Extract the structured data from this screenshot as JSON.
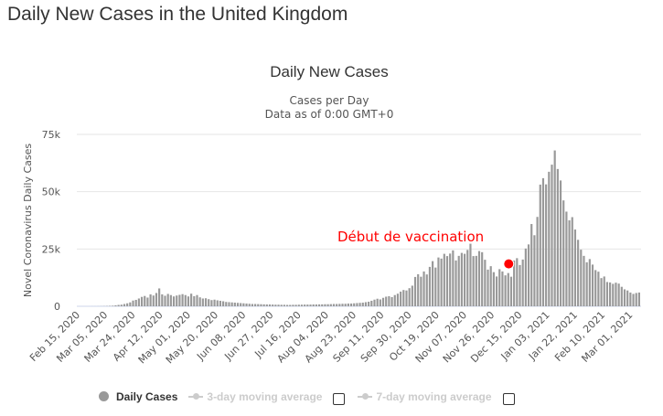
{
  "page_title": "Daily New Cases in the United Kingdom",
  "chart_data": {
    "type": "bar",
    "title": "Daily New Cases",
    "subtitle_1": "Cases per Day",
    "subtitle_2": "Data as of 0:00 GMT+0",
    "ylabel": "Novel Coronavirus Daily Cases",
    "xlabel": "",
    "ylim": [
      0,
      75000
    ],
    "y_ticks": [
      {
        "value": 0,
        "label": "0"
      },
      {
        "value": 25000,
        "label": "25k"
      },
      {
        "value": 50000,
        "label": "50k"
      },
      {
        "value": 75000,
        "label": "75k"
      }
    ],
    "x_start": "2020-02-15",
    "x_step_days": 2,
    "x_total_days": 388,
    "x_tick_labels": [
      "Feb 15, 2020",
      "Mar 05, 2020",
      "Mar 24, 2020",
      "Apr 12, 2020",
      "May 01, 2020",
      "May 20, 2020",
      "Jun 08, 2020",
      "Jun 27, 2020",
      "Jul 16, 2020",
      "Aug 04, 2020",
      "Aug 23, 2020",
      "Sep 11, 2020",
      "Sep 30, 2020",
      "Oct 19, 2020",
      "Nov 07, 2020",
      "Nov 26, 2020",
      "Dec 15, 2020",
      "Jan 03, 2021",
      "Jan 22, 2021",
      "Feb 10, 2021",
      "Mar 01, 2021"
    ],
    "x_tick_step_days": 19,
    "grid": true,
    "bar_color": "#999999",
    "series": [
      {
        "name": "Daily Cases",
        "values": [
          0,
          0,
          0,
          0,
          0,
          10,
          15,
          30,
          50,
          80,
          120,
          180,
          250,
          400,
          600,
          700,
          1000,
          1300,
          1700,
          2500,
          2800,
          3400,
          4100,
          4500,
          3800,
          5200,
          4700,
          5800,
          7800,
          5200,
          4600,
          5400,
          4900,
          4300,
          4700,
          5000,
          5300,
          4900,
          4300,
          5500,
          4400,
          4900,
          3900,
          3400,
          3500,
          3100,
          2700,
          2900,
          2600,
          2400,
          2200,
          1900,
          1800,
          1700,
          1600,
          1500,
          1400,
          1300,
          1200,
          1100,
          1000,
          1000,
          950,
          900,
          850,
          800,
          800,
          750,
          700,
          700,
          650,
          650,
          600,
          600,
          650,
          650,
          700,
          700,
          750,
          750,
          750,
          800,
          800,
          850,
          850,
          900,
          900,
          950,
          1000,
          1000,
          1050,
          1100,
          1100,
          1200,
          1200,
          1300,
          1400,
          1500,
          1600,
          1800,
          2000,
          2400,
          2900,
          3300,
          3000,
          3700,
          4200,
          4400,
          4000,
          4900,
          5500,
          6400,
          7100,
          6900,
          7900,
          9000,
          12800,
          14000,
          12900,
          15200,
          13900,
          17200,
          19700,
          16900,
          21300,
          20800,
          22900,
          21900,
          23000,
          24400,
          20000,
          22000,
          23300,
          22900,
          24600,
          27300,
          21900,
          22000,
          24100,
          23600,
          20300,
          16000,
          17500,
          14900,
          13000,
          16200,
          15200,
          13500,
          14500,
          12900,
          20000,
          21000,
          18000,
          20400,
          25200,
          27000,
          35900,
          31000,
          39000,
          53100,
          55900,
          53200,
          58700,
          61800,
          68000,
          59900,
          54900,
          46200,
          41300,
          37500,
          38900,
          33500,
          29000,
          24700,
          22000,
          19200,
          20600,
          18200,
          15800,
          15100,
          12300,
          13000,
          10600,
          10400,
          9800,
          10300,
          9900,
          8500,
          7400,
          6900,
          6000,
          5400,
          5800,
          6000
        ]
      }
    ],
    "annotation": {
      "text": "Début de vaccination",
      "date": "2020-12-08",
      "value": 18500,
      "color": "#ff0000"
    },
    "legend": {
      "placement": "bottom-center",
      "items": [
        "Daily Cases",
        "3-day moving average",
        "7-day moving average"
      ]
    }
  }
}
